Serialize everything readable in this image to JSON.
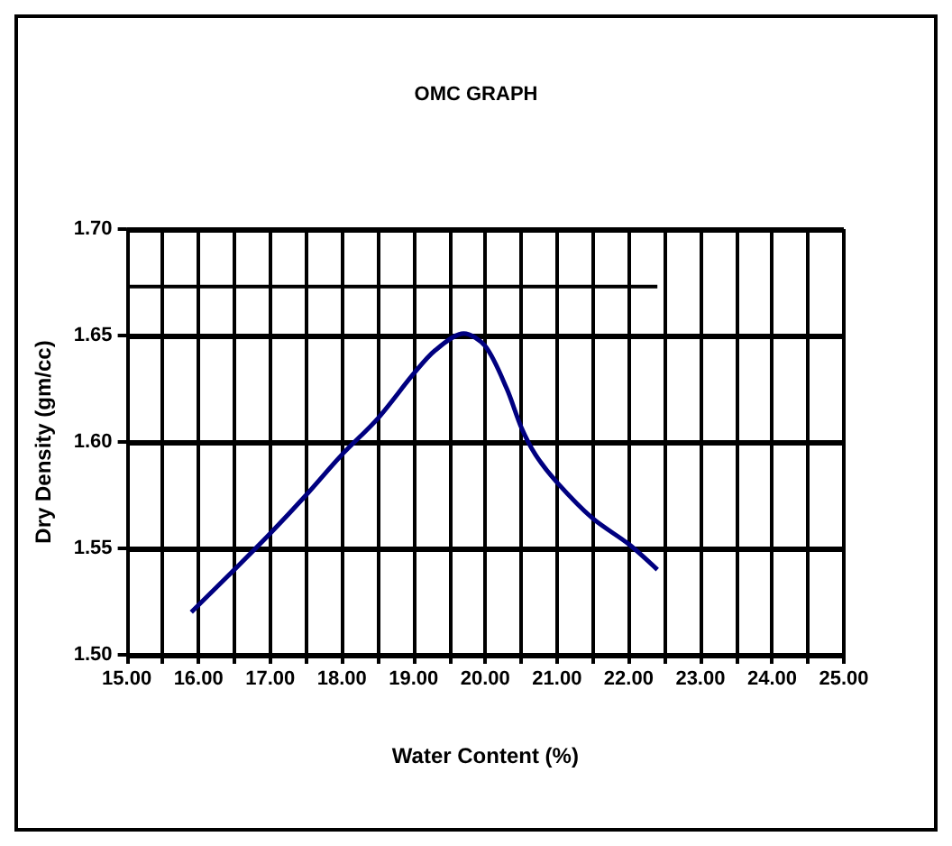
{
  "chart_data": {
    "type": "line",
    "title": "OMC GRAPH",
    "xlabel": "Water Content (%)",
    "ylabel": "Dry Density (gm/cc)",
    "xlim": [
      15,
      25
    ],
    "ylim": [
      1.5,
      1.7
    ],
    "xticks": [
      {
        "value": 15,
        "label": "15.00"
      },
      {
        "value": 15.5,
        "label": null
      },
      {
        "value": 16,
        "label": "16.00"
      },
      {
        "value": 16.5,
        "label": null
      },
      {
        "value": 17,
        "label": "17.00"
      },
      {
        "value": 17.5,
        "label": null
      },
      {
        "value": 18,
        "label": "18.00"
      },
      {
        "value": 18.5,
        "label": null
      },
      {
        "value": 19,
        "label": "19.00"
      },
      {
        "value": 19.5,
        "label": null
      },
      {
        "value": 20,
        "label": "20.00"
      },
      {
        "value": 20.5,
        "label": null
      },
      {
        "value": 21,
        "label": "21.00"
      },
      {
        "value": 21.5,
        "label": null
      },
      {
        "value": 22,
        "label": "22.00"
      },
      {
        "value": 22.5,
        "label": null
      },
      {
        "value": 23,
        "label": "23.00"
      },
      {
        "value": 23.5,
        "label": null
      },
      {
        "value": 24,
        "label": "24.00"
      },
      {
        "value": 24.5,
        "label": null
      },
      {
        "value": 25,
        "label": "25.00"
      }
    ],
    "yticks": [
      {
        "value": 1.5,
        "label": "1.50"
      },
      {
        "value": 1.55,
        "label": "1.55"
      },
      {
        "value": 1.6,
        "label": "1.60"
      },
      {
        "value": 1.65,
        "label": "1.65"
      },
      {
        "value": 1.7,
        "label": "1.70"
      }
    ],
    "grid": true,
    "marker": "none",
    "line_style": "solid",
    "series": [
      {
        "color": "#000080",
        "x": [
          15.9,
          16.5,
          17,
          17.5,
          18,
          18.5,
          19,
          19.3,
          19.7,
          20,
          20.3,
          20.5,
          20.7,
          21,
          21.5,
          22,
          22.4
        ],
        "values": [
          1.52,
          1.54,
          1.557,
          1.575,
          1.594,
          1.611,
          1.632,
          1.643,
          1.651,
          1.645,
          1.625,
          1.607,
          1.594,
          1.581,
          1.564,
          1.552,
          1.54
        ]
      },
      {
        "color": "#000000",
        "x": [
          15,
          22.4
        ],
        "values": [
          1.673,
          1.673
        ]
      }
    ]
  }
}
